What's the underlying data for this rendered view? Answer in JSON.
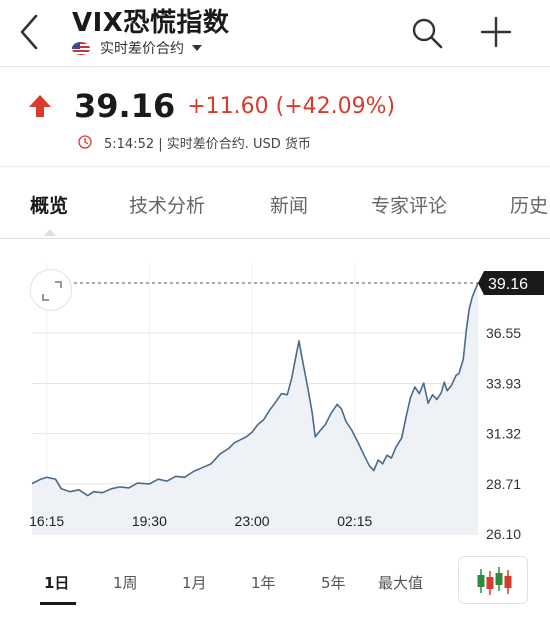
{
  "header": {
    "title": "VIX恐慌指数",
    "subtitle": "实时差价合约",
    "icons": [
      "back-chevron-icon",
      "us-flag-icon",
      "chevron-down-icon",
      "search-icon",
      "plus-icon"
    ]
  },
  "quote": {
    "price": "39.16",
    "change": "+11.60 (+42.09%)",
    "time_info": "5:14:52 | 实时差价合约.  USD 货币",
    "colors": {
      "up": "#d83a2e"
    }
  },
  "tabs": [
    {
      "label": "概览",
      "active": true
    },
    {
      "label": "技术分析",
      "active": false
    },
    {
      "label": "新闻",
      "active": false
    },
    {
      "label": "专家评论",
      "active": false
    },
    {
      "label": "历史",
      "active": false
    }
  ],
  "chart_data": {
    "type": "area",
    "last_value_label": "39.16",
    "ylim": [
      26.1,
      39.16
    ],
    "y_ticks": [
      "36.55",
      "33.93",
      "31.32",
      "28.71",
      "26.10"
    ],
    "x_ticks": [
      "16:15",
      "19:30",
      "23:00",
      "02:15"
    ],
    "x_tick_positions": [
      0.5,
      4.0,
      7.5,
      11.0
    ],
    "xlim": [
      0,
      14.5
    ],
    "grid": true,
    "line_color": "#4a6b8a",
    "fill_color": "#eef2f7",
    "points": [
      [
        0.0,
        28.72
      ],
      [
        0.3,
        28.95
      ],
      [
        0.5,
        29.05
      ],
      [
        0.8,
        28.95
      ],
      [
        1.0,
        28.45
      ],
      [
        1.3,
        28.3
      ],
      [
        1.6,
        28.4
      ],
      [
        1.9,
        28.1
      ],
      [
        2.1,
        28.3
      ],
      [
        2.4,
        28.25
      ],
      [
        2.7,
        28.45
      ],
      [
        3.0,
        28.55
      ],
      [
        3.3,
        28.5
      ],
      [
        3.6,
        28.75
      ],
      [
        4.0,
        28.7
      ],
      [
        4.3,
        28.95
      ],
      [
        4.6,
        28.85
      ],
      [
        4.9,
        29.1
      ],
      [
        5.2,
        29.05
      ],
      [
        5.5,
        29.35
      ],
      [
        5.8,
        29.55
      ],
      [
        6.1,
        29.75
      ],
      [
        6.4,
        30.25
      ],
      [
        6.7,
        30.55
      ],
      [
        6.9,
        30.85
      ],
      [
        7.1,
        31.0
      ],
      [
        7.3,
        31.15
      ],
      [
        7.5,
        31.4
      ],
      [
        7.7,
        31.8
      ],
      [
        7.9,
        32.05
      ],
      [
        8.1,
        32.55
      ],
      [
        8.3,
        32.95
      ],
      [
        8.5,
        33.4
      ],
      [
        8.7,
        33.35
      ],
      [
        8.85,
        34.2
      ],
      [
        9.0,
        35.4
      ],
      [
        9.1,
        36.15
      ],
      [
        9.2,
        35.3
      ],
      [
        9.4,
        33.7
      ],
      [
        9.55,
        32.4
      ],
      [
        9.65,
        31.15
      ],
      [
        9.8,
        31.45
      ],
      [
        10.0,
        31.8
      ],
      [
        10.2,
        32.4
      ],
      [
        10.4,
        32.85
      ],
      [
        10.55,
        32.6
      ],
      [
        10.7,
        31.95
      ],
      [
        10.9,
        31.5
      ],
      [
        11.1,
        30.9
      ],
      [
        11.3,
        30.25
      ],
      [
        11.5,
        29.65
      ],
      [
        11.65,
        29.4
      ],
      [
        11.8,
        29.95
      ],
      [
        11.95,
        29.75
      ],
      [
        12.1,
        30.2
      ],
      [
        12.25,
        30.05
      ],
      [
        12.4,
        30.6
      ],
      [
        12.6,
        31.1
      ],
      [
        12.75,
        32.2
      ],
      [
        12.9,
        33.2
      ],
      [
        13.05,
        33.75
      ],
      [
        13.2,
        33.4
      ],
      [
        13.35,
        33.95
      ],
      [
        13.5,
        32.9
      ],
      [
        13.65,
        33.35
      ],
      [
        13.8,
        33.1
      ],
      [
        13.95,
        33.45
      ],
      [
        14.05,
        34.0
      ],
      [
        14.15,
        33.55
      ],
      [
        14.3,
        33.85
      ],
      [
        14.45,
        34.35
      ],
      [
        14.55,
        34.45
      ],
      [
        14.7,
        35.2
      ],
      [
        14.8,
        36.7
      ],
      [
        14.9,
        37.8
      ],
      [
        15.0,
        38.4
      ],
      [
        15.1,
        38.8
      ],
      [
        15.2,
        39.16
      ]
    ]
  },
  "ranges": [
    {
      "label": "1日",
      "active": true
    },
    {
      "label": "1周",
      "active": false
    },
    {
      "label": "1月",
      "active": false
    },
    {
      "label": "1年",
      "active": false
    },
    {
      "label": "5年",
      "active": false
    },
    {
      "label": "最大值",
      "active": false
    }
  ]
}
